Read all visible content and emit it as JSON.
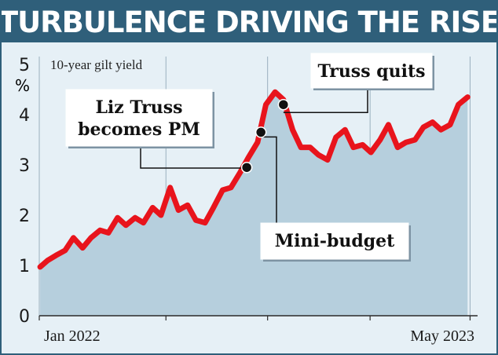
{
  "title": "TURBULENCE DRIVING THE RISE",
  "colors": {
    "title_bg": "#2f5f7a",
    "background": "#e6f0f6",
    "area_fill": "#b6cfdd",
    "line": "#e8141c",
    "grid": "#9ab0bf",
    "axis": "#2a2a2a"
  },
  "chart_data": {
    "type": "area",
    "ylabel": "10-year gilt yield",
    "y_unit": "%",
    "ylim": [
      0,
      5
    ],
    "y_ticks": [
      "0",
      "1",
      "2",
      "3",
      "4",
      "5"
    ],
    "x_tick_labels": [
      {
        "date": "2022-01",
        "label": "Jan 2022"
      },
      {
        "date": "2023-05",
        "label": "May 2023"
      }
    ],
    "xlim": [
      "2021-12-31",
      "2023-06-10"
    ],
    "x_gridlines": [
      "2021-12-31",
      "2022-06-01",
      "2022-10-01",
      "2023-02-01",
      "2023-06-01"
    ],
    "series": [
      {
        "x": [
          "2022-01-01",
          "2022-01-10",
          "2022-01-20",
          "2022-01-31",
          "2022-02-10",
          "2022-02-21",
          "2022-03-03",
          "2022-03-14",
          "2022-03-24",
          "2022-04-04",
          "2022-04-14",
          "2022-04-25",
          "2022-05-05",
          "2022-05-16",
          "2022-05-26",
          "2022-06-06",
          "2022-06-16",
          "2022-06-27",
          "2022-07-07",
          "2022-07-18",
          "2022-07-28",
          "2022-08-08",
          "2022-08-18",
          "2022-08-29",
          "2022-09-08",
          "2022-09-19",
          "2022-09-29",
          "2022-10-10",
          "2022-10-20",
          "2022-10-31",
          "2022-11-10",
          "2022-11-21",
          "2022-12-01",
          "2022-12-12",
          "2022-12-22",
          "2023-01-02",
          "2023-01-12",
          "2023-01-23",
          "2023-02-02",
          "2023-02-13",
          "2023-02-23",
          "2023-03-06",
          "2023-03-16",
          "2023-03-27",
          "2023-04-06",
          "2023-04-17",
          "2023-04-27",
          "2023-05-08",
          "2023-05-18",
          "2023-05-29"
        ],
        "y": [
          0.97,
          1.1,
          1.2,
          1.3,
          1.55,
          1.35,
          1.55,
          1.7,
          1.65,
          1.95,
          1.8,
          1.95,
          1.85,
          2.15,
          2.0,
          2.55,
          2.1,
          2.2,
          1.9,
          1.85,
          2.15,
          2.5,
          2.55,
          2.85,
          3.15,
          3.45,
          4.2,
          4.45,
          4.3,
          3.7,
          3.35,
          3.35,
          3.2,
          3.1,
          3.55,
          3.7,
          3.35,
          3.4,
          3.25,
          3.5,
          3.8,
          3.35,
          3.45,
          3.5,
          3.75,
          3.85,
          3.7,
          3.8,
          4.2,
          4.35
        ]
      }
    ],
    "annotations": [
      {
        "lines": [
          "Liz Truss",
          "becomes PM"
        ],
        "date": "2022-09-06",
        "value": 2.95
      },
      {
        "lines": [
          "Mini-budget"
        ],
        "date": "2022-09-23",
        "value": 3.65
      },
      {
        "lines": [
          "Truss quits"
        ],
        "date": "2022-10-20",
        "value": 4.2
      }
    ]
  }
}
